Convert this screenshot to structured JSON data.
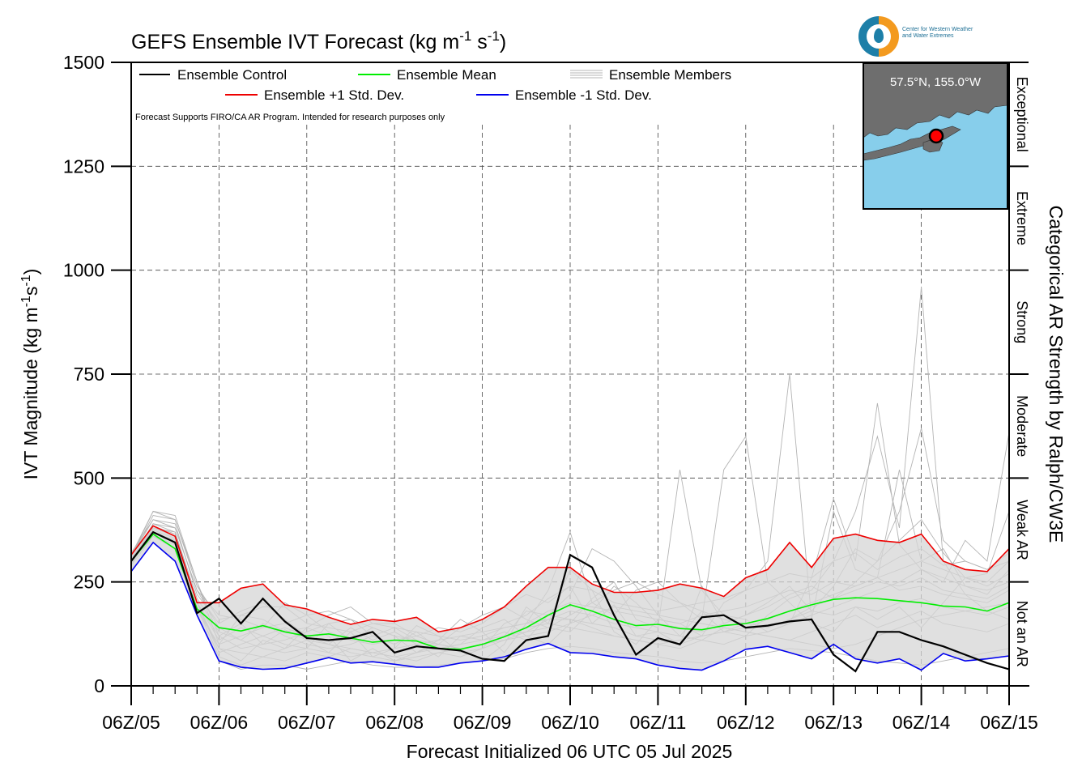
{
  "colors": {
    "control": "#000000",
    "mean": "#00ee00",
    "plus_std": "#ee0000",
    "minus_std": "#0000ee",
    "members": "#b4b4b4",
    "spread_fill": "#d6d6d6",
    "map_water": "#87ceeb",
    "map_land": "#6e6e6e",
    "point_marker": "#ff0000"
  },
  "logo": {
    "icon": "water-drop-icon",
    "text_line1": "Center for Western Weather",
    "text_line2": "and Water Extremes"
  },
  "inset_map": {
    "label": "57.5°N, 155.0°W"
  },
  "chart_data": {
    "type": "line",
    "title": "GEFS Ensemble IVT Forecast (kg m",
    "title_sup1": "-1",
    "title_mid": " s",
    "title_sup2": "-1",
    "title_end": ")",
    "xlabel": "Forecast Initialized 06 UTC 05 Jul 2025",
    "ylabel": "IVT Magnitude (kg m",
    "ylabel_sup1": "-1",
    "ylabel_mid": "s",
    "ylabel_sup2": "-1",
    "ylabel_end": ")",
    "right_label": "Categorical AR Strength by Ralph/CW3E",
    "note": "Forecast Supports FIRO/CA AR Program. Intended for research purposes only",
    "ylim": [
      0,
      1500
    ],
    "yticks": [
      0,
      250,
      500,
      750,
      1000,
      1250,
      1500
    ],
    "xlim": [
      0,
      240
    ],
    "xtick_labels": [
      "06Z/05",
      "06Z/06",
      "06Z/07",
      "06Z/08",
      "06Z/09",
      "06Z/10",
      "06Z/11",
      "06Z/12",
      "06Z/13",
      "06Z/14",
      "06Z/15"
    ],
    "xtick_hours": [
      0,
      24,
      48,
      72,
      96,
      120,
      144,
      168,
      192,
      216,
      240
    ],
    "grid": true,
    "legend_placement": "top",
    "legend": {
      "control": "Ensemble Control",
      "mean": "Ensemble Mean",
      "members": "Ensemble Members",
      "plus_std": "Ensemble +1 Std. Dev.",
      "minus_std": "Ensemble -1 Std. Dev."
    },
    "categories": [
      {
        "label": "Not an AR",
        "from": 0,
        "to": 250
      },
      {
        "label": "Weak AR",
        "from": 250,
        "to": 500
      },
      {
        "label": "Moderate",
        "from": 500,
        "to": 750
      },
      {
        "label": "Strong",
        "from": 750,
        "to": 1000
      },
      {
        "label": "Extreme",
        "from": 1000,
        "to": 1250
      },
      {
        "label": "Exceptional",
        "from": 1250,
        "to": 1500
      }
    ],
    "x": [
      0,
      6,
      12,
      18,
      24,
      30,
      36,
      42,
      48,
      54,
      60,
      66,
      72,
      78,
      84,
      90,
      96,
      102,
      108,
      114,
      120,
      126,
      132,
      138,
      144,
      150,
      156,
      162,
      168,
      174,
      180,
      186,
      192,
      198,
      204,
      210,
      216,
      222,
      228,
      234,
      240
    ],
    "series": [
      {
        "name": "Ensemble +1 Std. Dev.",
        "key": "plus_std",
        "values": [
          315,
          385,
          360,
          200,
          200,
          235,
          245,
          195,
          185,
          165,
          148,
          160,
          155,
          165,
          130,
          140,
          160,
          190,
          240,
          285,
          285,
          245,
          225,
          225,
          230,
          245,
          235,
          215,
          260,
          280,
          345,
          285,
          355,
          365,
          350,
          345,
          365,
          300,
          280,
          275,
          330
        ]
      },
      {
        "name": "Ensemble -1 Std. Dev.",
        "key": "minus_std",
        "values": [
          275,
          345,
          300,
          170,
          60,
          45,
          40,
          42,
          55,
          68,
          55,
          58,
          52,
          45,
          45,
          55,
          60,
          70,
          88,
          102,
          80,
          78,
          70,
          65,
          50,
          42,
          38,
          60,
          88,
          95,
          80,
          65,
          100,
          65,
          55,
          65,
          38,
          78,
          60,
          65,
          72
        ]
      },
      {
        "name": "Ensemble Mean",
        "key": "mean",
        "values": [
          300,
          365,
          330,
          185,
          140,
          132,
          145,
          130,
          120,
          125,
          115,
          105,
          110,
          108,
          90,
          88,
          100,
          118,
          140,
          170,
          195,
          180,
          160,
          145,
          148,
          138,
          135,
          145,
          150,
          162,
          180,
          195,
          208,
          212,
          210,
          205,
          200,
          192,
          190,
          180,
          200
        ]
      },
      {
        "name": "Ensemble Control",
        "key": "control",
        "values": [
          300,
          370,
          345,
          175,
          210,
          150,
          210,
          155,
          115,
          110,
          115,
          130,
          80,
          95,
          90,
          85,
          65,
          60,
          110,
          120,
          315,
          285,
          170,
          75,
          115,
          100,
          165,
          170,
          140,
          145,
          155,
          160,
          75,
          35,
          130,
          130,
          110,
          95,
          75,
          55,
          40
        ]
      }
    ],
    "members": [
      [
        310,
        420,
        400,
        250,
        120,
        150,
        100,
        135,
        110,
        80,
        130,
        70,
        90,
        145,
        120,
        80,
        90,
        150,
        170,
        210,
        240,
        150,
        195,
        120,
        130,
        100,
        240,
        150,
        170,
        200,
        240,
        180,
        240,
        330,
        300,
        350,
        400,
        320,
        260,
        250,
        300
      ],
      [
        290,
        380,
        370,
        200,
        90,
        60,
        110,
        90,
        140,
        120,
        60,
        90,
        60,
        80,
        100,
        90,
        60,
        100,
        190,
        150,
        280,
        230,
        130,
        100,
        160,
        150,
        120,
        200,
        230,
        300,
        750,
        160,
        420,
        280,
        260,
        520,
        300,
        330,
        240,
        220,
        280
      ],
      [
        320,
        400,
        390,
        220,
        150,
        180,
        200,
        160,
        120,
        100,
        140,
        110,
        130,
        100,
        70,
        120,
        110,
        130,
        110,
        170,
        220,
        330,
        300,
        240,
        170,
        120,
        180,
        130,
        120,
        170,
        210,
        230,
        300,
        420,
        600,
        380,
        960,
        300,
        220,
        180,
        160
      ],
      [
        300,
        360,
        340,
        180,
        100,
        120,
        140,
        200,
        170,
        130,
        110,
        140,
        120,
        80,
        110,
        160,
        130,
        80,
        150,
        230,
        370,
        200,
        170,
        230,
        250,
        200,
        160,
        520,
        600,
        250,
        200,
        150,
        130,
        190,
        160,
        190,
        140,
        200,
        260,
        270,
        420
      ],
      [
        295,
        390,
        380,
        230,
        140,
        110,
        90,
        80,
        90,
        150,
        160,
        120,
        100,
        130,
        90,
        100,
        140,
        160,
        120,
        100,
        150,
        210,
        250,
        160,
        140,
        520,
        230,
        170,
        160,
        130,
        150,
        260,
        450,
        300,
        680,
        340,
        280,
        250,
        350,
        300,
        610
      ],
      [
        305,
        375,
        355,
        190,
        70,
        50,
        70,
        60,
        80,
        70,
        90,
        80,
        70,
        60,
        80,
        70,
        90,
        110,
        130,
        160,
        160,
        140,
        120,
        110,
        100,
        90,
        110,
        140,
        130,
        120,
        110,
        130,
        150,
        170,
        140,
        160,
        180,
        150,
        140,
        130,
        150
      ],
      [
        310,
        410,
        400,
        240,
        160,
        170,
        190,
        190,
        150,
        140,
        130,
        150,
        140,
        130,
        120,
        110,
        120,
        140,
        150,
        180,
        200,
        190,
        180,
        170,
        160,
        150,
        170,
        180,
        190,
        210,
        230,
        220,
        250,
        240,
        260,
        230,
        240,
        220,
        210,
        200,
        230
      ],
      [
        300,
        370,
        350,
        200,
        120,
        90,
        100,
        110,
        130,
        150,
        110,
        100,
        110,
        120,
        100,
        90,
        100,
        120,
        180,
        170,
        160,
        150,
        140,
        120,
        110,
        100,
        120,
        130,
        150,
        140,
        160,
        180,
        170,
        190,
        180,
        200,
        210,
        190,
        180,
        170,
        190
      ],
      [
        315,
        420,
        410,
        250,
        100,
        170,
        160,
        130,
        140,
        170,
        190,
        150,
        150,
        120,
        140,
        130,
        150,
        190,
        220,
        200,
        240,
        230,
        200,
        190,
        180,
        190,
        200,
        210,
        230,
        250,
        270,
        260,
        300,
        320,
        280,
        310,
        330,
        290,
        300,
        280,
        300
      ],
      [
        290,
        360,
        330,
        170,
        60,
        40,
        50,
        50,
        40,
        50,
        60,
        50,
        45,
        45,
        50,
        55,
        60,
        65,
        80,
        90,
        95,
        90,
        80,
        75,
        70,
        60,
        55,
        60,
        70,
        80,
        90,
        85,
        80,
        70,
        60,
        55,
        50,
        60,
        70,
        80,
        90
      ],
      [
        305,
        390,
        370,
        210,
        130,
        110,
        150,
        120,
        100,
        90,
        100,
        120,
        140,
        110,
        100,
        140,
        170,
        190,
        160,
        140,
        130,
        180,
        240,
        200,
        150,
        140,
        130,
        150,
        170,
        190,
        220,
        240,
        210,
        230,
        250,
        240,
        260,
        230,
        220,
        210,
        240
      ],
      [
        300,
        380,
        360,
        200,
        110,
        140,
        120,
        100,
        90,
        80,
        70,
        80,
        90,
        100,
        110,
        120,
        130,
        140,
        150,
        160,
        180,
        170,
        150,
        140,
        130,
        120,
        110,
        100,
        120,
        130,
        150,
        170,
        190,
        210,
        230,
        250,
        280,
        260,
        240,
        230,
        250
      ],
      [
        310,
        400,
        380,
        230,
        170,
        160,
        140,
        150,
        170,
        180,
        160,
        140,
        120,
        110,
        100,
        90,
        100,
        120,
        140,
        150,
        140,
        130,
        120,
        110,
        100,
        110,
        120,
        130,
        140,
        160,
        180,
        200,
        220,
        240,
        260,
        280,
        300,
        280,
        260,
        240,
        270
      ],
      [
        295,
        370,
        350,
        190,
        90,
        80,
        70,
        90,
        110,
        100,
        90,
        80,
        70,
        80,
        90,
        100,
        110,
        120,
        130,
        140,
        170,
        200,
        230,
        250,
        220,
        200,
        180,
        160,
        150,
        140,
        160,
        190,
        210,
        250,
        300,
        420,
        620,
        350,
        300,
        280,
        320
      ],
      [
        300,
        385,
        365,
        200,
        80,
        100,
        120,
        140,
        120,
        100,
        80,
        70,
        60,
        70,
        80,
        90,
        100,
        110,
        120,
        130,
        150,
        170,
        190,
        180,
        170,
        160,
        150,
        140,
        130,
        120,
        110,
        100,
        90,
        100,
        120,
        140,
        160,
        170,
        180,
        190,
        200
      ]
    ]
  }
}
